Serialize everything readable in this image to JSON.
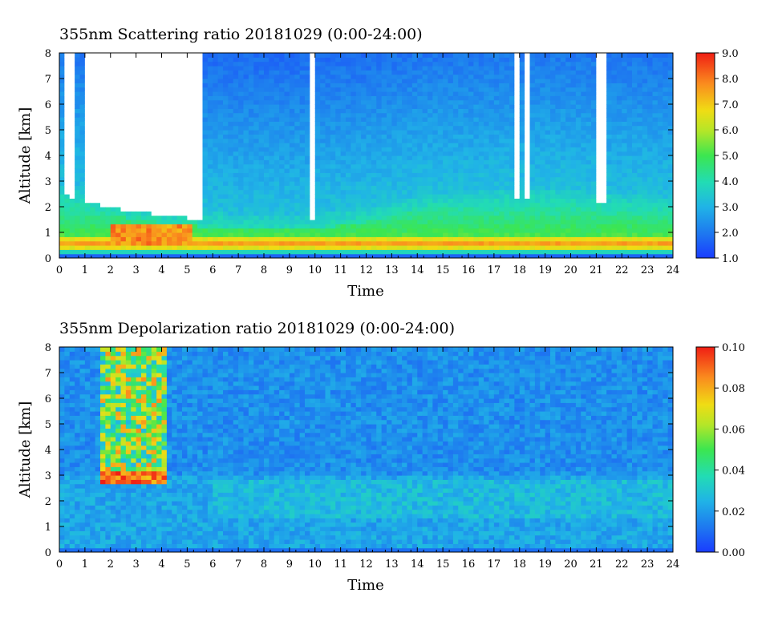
{
  "chart_data": [
    {
      "type": "heatmap",
      "title": "355nm Scattering ratio  20181029 (0:00-24:00)",
      "xlabel": "Time",
      "ylabel": "Altitude [km]",
      "xlim": [
        0,
        24
      ],
      "ylim": [
        0,
        8
      ],
      "x_ticks": [
        "0",
        "1",
        "2",
        "3",
        "4",
        "5",
        "6",
        "7",
        "8",
        "9",
        "10",
        "11",
        "12",
        "13",
        "14",
        "15",
        "16",
        "17",
        "18",
        "19",
        "20",
        "21",
        "22",
        "23",
        "24"
      ],
      "y_ticks": [
        "0",
        "1",
        "2",
        "3",
        "4",
        "5",
        "6",
        "7",
        "8"
      ],
      "colorbar": {
        "range": [
          1.0,
          9.0
        ],
        "ticks": [
          "1.0",
          "2.0",
          "3.0",
          "4.0",
          "5.0",
          "6.0",
          "7.0",
          "8.0",
          "9.0"
        ]
      },
      "features": {
        "boundary_layer_peak_altitude_km": 0.55,
        "boundary_layer_top_km": [
          2.2,
          1.6,
          1.3,
          1.1,
          1.1,
          1.4,
          1.9,
          2.0,
          2.1,
          1.9,
          1.8
        ],
        "cloud_gaps_hours": [
          [
            0.3,
            0.6
          ],
          [
            0.9,
            1.1
          ],
          [
            1.3,
            1.6
          ],
          [
            1.6,
            5.6
          ],
          [
            9.8,
            9.95
          ],
          [
            17.8,
            17.95
          ],
          [
            18.2,
            18.45
          ],
          [
            21.0,
            21.3
          ]
        ]
      }
    },
    {
      "type": "heatmap",
      "title": "355nm Depolarization ratio  20181029 (0:00-24:00)",
      "xlabel": "Time",
      "ylabel": "Altitude [km]",
      "xlim": [
        0,
        24
      ],
      "ylim": [
        0,
        8
      ],
      "x_ticks": [
        "0",
        "1",
        "2",
        "3",
        "4",
        "5",
        "6",
        "7",
        "8",
        "9",
        "10",
        "11",
        "12",
        "13",
        "14",
        "15",
        "16",
        "17",
        "18",
        "19",
        "20",
        "21",
        "22",
        "23",
        "24"
      ],
      "y_ticks": [
        "0",
        "1",
        "2",
        "3",
        "4",
        "5",
        "6",
        "7",
        "8"
      ],
      "colorbar": {
        "range": [
          0.0,
          0.1
        ],
        "ticks": [
          "0.00",
          "0.02",
          "0.04",
          "0.06",
          "0.08",
          "0.10"
        ]
      },
      "features": {
        "background_value": 0.015,
        "cloud_region_hours": [
          1.7,
          4.2
        ],
        "cloud_base_km": 2.6
      }
    }
  ]
}
